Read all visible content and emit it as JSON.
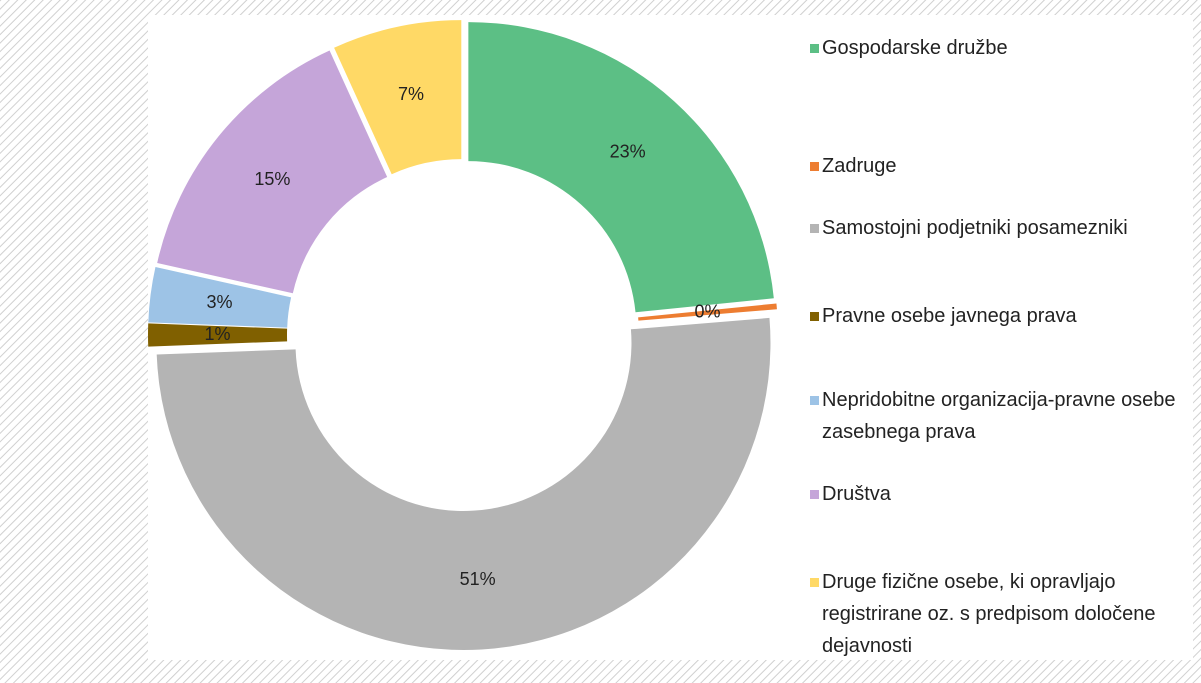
{
  "chart_data": {
    "type": "donut",
    "categories": [
      "Gospodarske družbe",
      "Zadruge",
      "Samostojni podjetniki posamezniki",
      "Pravne osebe javnega prava",
      "Nepridobitne organizacija-pravne osebe zasebnega prava",
      "Društva",
      "Druge fizične osebe, ki opravljajo registrirane oz. s predpisom določene dejavnosti"
    ],
    "values": [
      23.4,
      0.3,
      50.7,
      1.2,
      2.9,
      14.7,
      6.8
    ],
    "value_labels": [
      "23%",
      "0%",
      "51%",
      "1%",
      "3%",
      "15%",
      "7%"
    ],
    "colors": [
      "#5cbf85",
      "#ed7d31",
      "#b4b4b4",
      "#806000",
      "#9dc3e6",
      "#c5a5d9",
      "#ffd966"
    ],
    "legend": "right"
  }
}
